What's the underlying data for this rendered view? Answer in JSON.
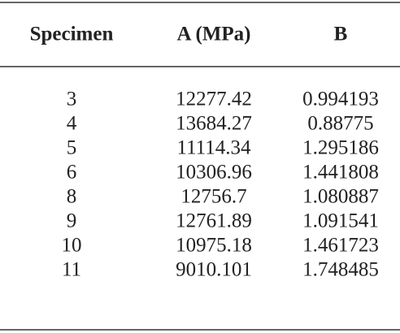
{
  "table": {
    "header": [
      "Specimen",
      "A (MPa)",
      "B"
    ],
    "rows": [
      [
        "3",
        "12277.42",
        "0.994193"
      ],
      [
        "4",
        "13684.27",
        "0.88775"
      ],
      [
        "5",
        "11114.34",
        "1.295186"
      ],
      [
        "6",
        "10306.96",
        "1.441808"
      ],
      [
        "8",
        "12756.7",
        "1.080887"
      ],
      [
        "9",
        "12761.89",
        "1.091541"
      ],
      [
        "10",
        "10975.18",
        "1.461723"
      ],
      [
        "11",
        "9010.101",
        "1.748485"
      ]
    ]
  }
}
